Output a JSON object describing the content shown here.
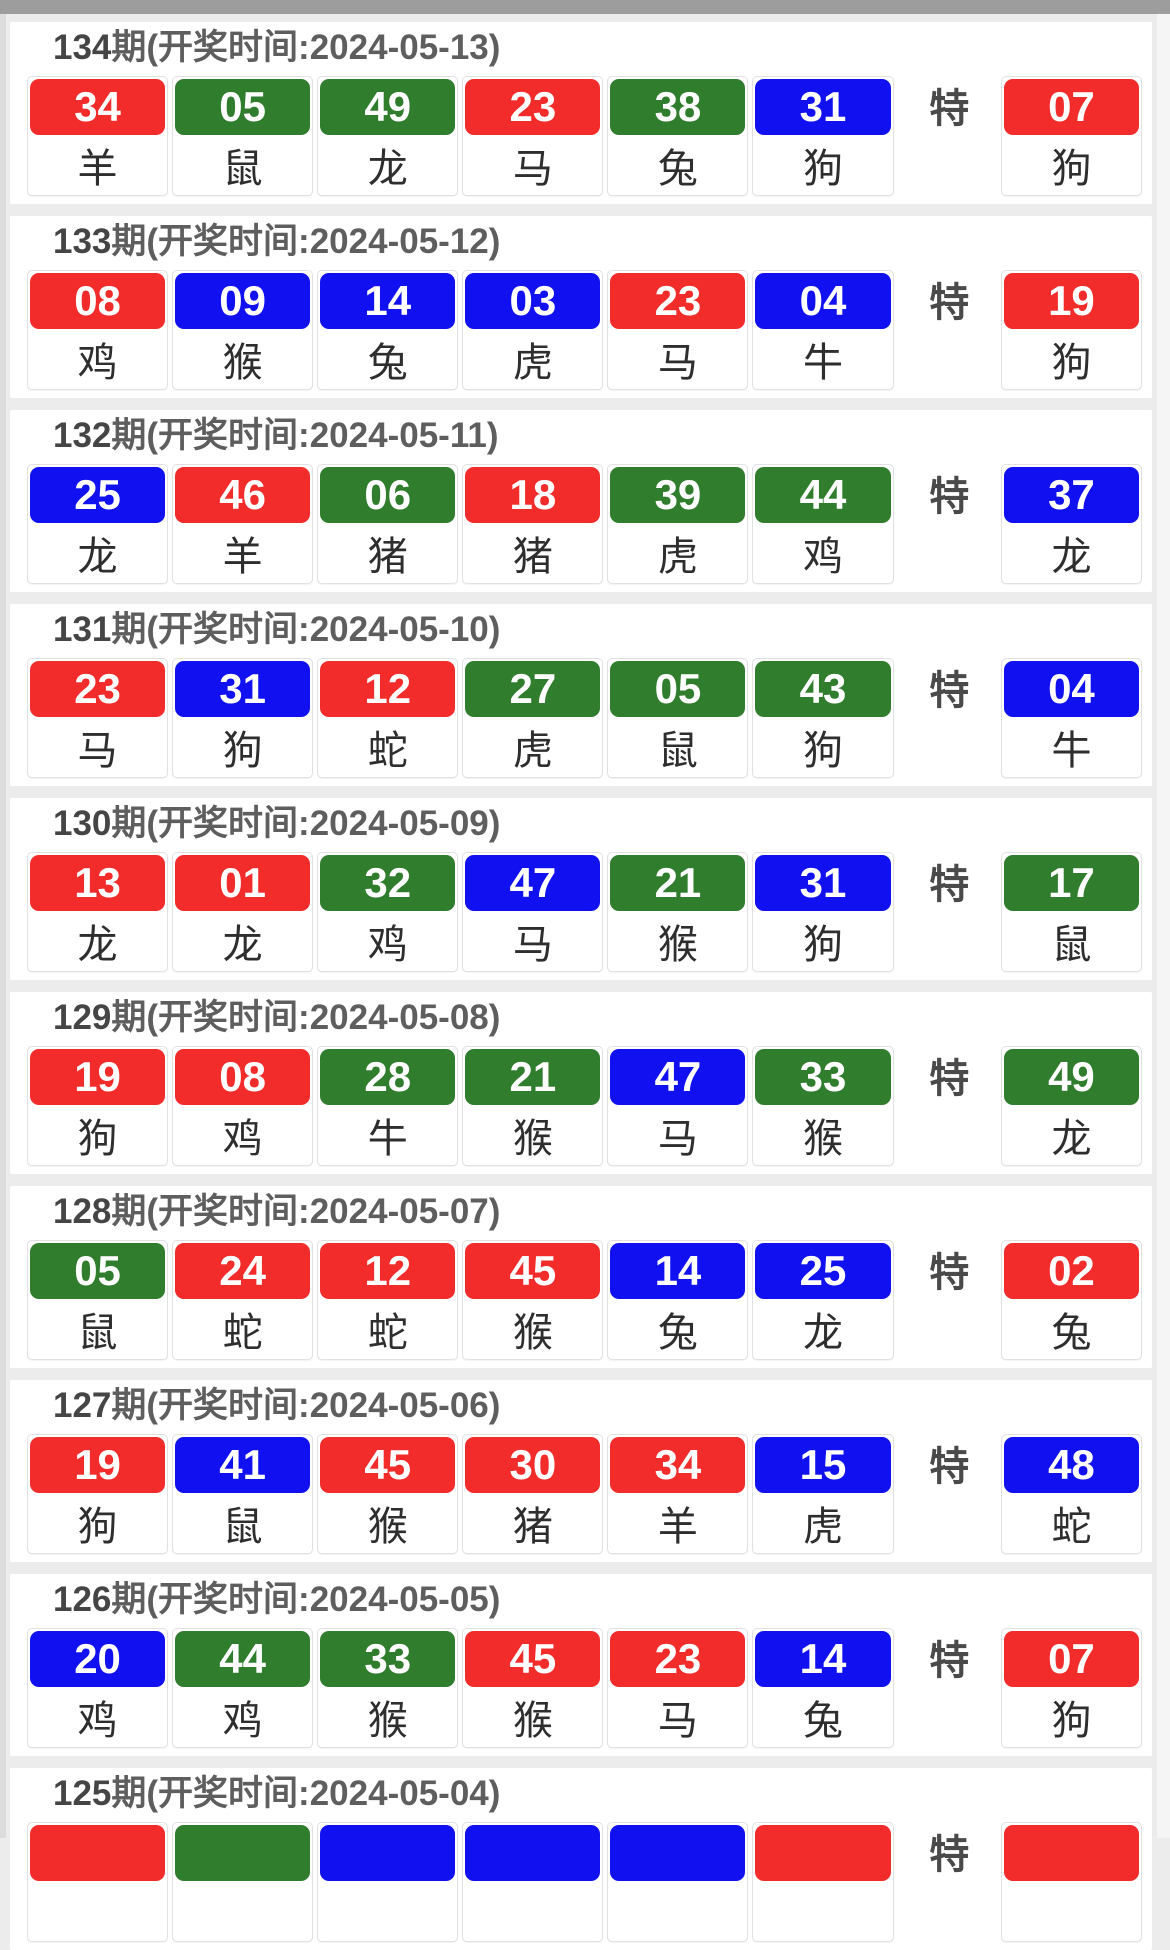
{
  "special_label": "特",
  "colors": {
    "red": "#f22b2b",
    "green": "#2f7d2d",
    "blue": "#1010f0"
  },
  "periods": [
    {
      "title_num": "134",
      "title_rest": "期(开奖时间:2024-05-13)",
      "balls": [
        {
          "num": "34",
          "color": "red",
          "zodiac": "羊"
        },
        {
          "num": "05",
          "color": "green",
          "zodiac": "鼠"
        },
        {
          "num": "49",
          "color": "green",
          "zodiac": "龙"
        },
        {
          "num": "23",
          "color": "red",
          "zodiac": "马"
        },
        {
          "num": "38",
          "color": "green",
          "zodiac": "兔"
        },
        {
          "num": "31",
          "color": "blue",
          "zodiac": "狗"
        }
      ],
      "special": {
        "num": "07",
        "color": "red",
        "zodiac": "狗"
      }
    },
    {
      "title_num": "133",
      "title_rest": "期(开奖时间:2024-05-12)",
      "balls": [
        {
          "num": "08",
          "color": "red",
          "zodiac": "鸡"
        },
        {
          "num": "09",
          "color": "blue",
          "zodiac": "猴"
        },
        {
          "num": "14",
          "color": "blue",
          "zodiac": "兔"
        },
        {
          "num": "03",
          "color": "blue",
          "zodiac": "虎"
        },
        {
          "num": "23",
          "color": "red",
          "zodiac": "马"
        },
        {
          "num": "04",
          "color": "blue",
          "zodiac": "牛"
        }
      ],
      "special": {
        "num": "19",
        "color": "red",
        "zodiac": "狗"
      }
    },
    {
      "title_num": "132",
      "title_rest": "期(开奖时间:2024-05-11)",
      "balls": [
        {
          "num": "25",
          "color": "blue",
          "zodiac": "龙"
        },
        {
          "num": "46",
          "color": "red",
          "zodiac": "羊"
        },
        {
          "num": "06",
          "color": "green",
          "zodiac": "猪"
        },
        {
          "num": "18",
          "color": "red",
          "zodiac": "猪"
        },
        {
          "num": "39",
          "color": "green",
          "zodiac": "虎"
        },
        {
          "num": "44",
          "color": "green",
          "zodiac": "鸡"
        }
      ],
      "special": {
        "num": "37",
        "color": "blue",
        "zodiac": "龙"
      }
    },
    {
      "title_num": "131",
      "title_rest": "期(开奖时间:2024-05-10)",
      "balls": [
        {
          "num": "23",
          "color": "red",
          "zodiac": "马"
        },
        {
          "num": "31",
          "color": "blue",
          "zodiac": "狗"
        },
        {
          "num": "12",
          "color": "red",
          "zodiac": "蛇"
        },
        {
          "num": "27",
          "color": "green",
          "zodiac": "虎"
        },
        {
          "num": "05",
          "color": "green",
          "zodiac": "鼠"
        },
        {
          "num": "43",
          "color": "green",
          "zodiac": "狗"
        }
      ],
      "special": {
        "num": "04",
        "color": "blue",
        "zodiac": "牛"
      }
    },
    {
      "title_num": "130",
      "title_rest": "期(开奖时间:2024-05-09)",
      "balls": [
        {
          "num": "13",
          "color": "red",
          "zodiac": "龙"
        },
        {
          "num": "01",
          "color": "red",
          "zodiac": "龙"
        },
        {
          "num": "32",
          "color": "green",
          "zodiac": "鸡"
        },
        {
          "num": "47",
          "color": "blue",
          "zodiac": "马"
        },
        {
          "num": "21",
          "color": "green",
          "zodiac": "猴"
        },
        {
          "num": "31",
          "color": "blue",
          "zodiac": "狗"
        }
      ],
      "special": {
        "num": "17",
        "color": "green",
        "zodiac": "鼠"
      }
    },
    {
      "title_num": "129",
      "title_rest": "期(开奖时间:2024-05-08)",
      "balls": [
        {
          "num": "19",
          "color": "red",
          "zodiac": "狗"
        },
        {
          "num": "08",
          "color": "red",
          "zodiac": "鸡"
        },
        {
          "num": "28",
          "color": "green",
          "zodiac": "牛"
        },
        {
          "num": "21",
          "color": "green",
          "zodiac": "猴"
        },
        {
          "num": "47",
          "color": "blue",
          "zodiac": "马"
        },
        {
          "num": "33",
          "color": "green",
          "zodiac": "猴"
        }
      ],
      "special": {
        "num": "49",
        "color": "green",
        "zodiac": "龙"
      }
    },
    {
      "title_num": "128",
      "title_rest": "期(开奖时间:2024-05-07)",
      "balls": [
        {
          "num": "05",
          "color": "green",
          "zodiac": "鼠"
        },
        {
          "num": "24",
          "color": "red",
          "zodiac": "蛇"
        },
        {
          "num": "12",
          "color": "red",
          "zodiac": "蛇"
        },
        {
          "num": "45",
          "color": "red",
          "zodiac": "猴"
        },
        {
          "num": "14",
          "color": "blue",
          "zodiac": "兔"
        },
        {
          "num": "25",
          "color": "blue",
          "zodiac": "龙"
        }
      ],
      "special": {
        "num": "02",
        "color": "red",
        "zodiac": "兔"
      }
    },
    {
      "title_num": "127",
      "title_rest": "期(开奖时间:2024-05-06)",
      "balls": [
        {
          "num": "19",
          "color": "red",
          "zodiac": "狗"
        },
        {
          "num": "41",
          "color": "blue",
          "zodiac": "鼠"
        },
        {
          "num": "45",
          "color": "red",
          "zodiac": "猴"
        },
        {
          "num": "30",
          "color": "red",
          "zodiac": "猪"
        },
        {
          "num": "34",
          "color": "red",
          "zodiac": "羊"
        },
        {
          "num": "15",
          "color": "blue",
          "zodiac": "虎"
        }
      ],
      "special": {
        "num": "48",
        "color": "blue",
        "zodiac": "蛇"
      }
    },
    {
      "title_num": "126",
      "title_rest": "期(开奖时间:2024-05-05)",
      "balls": [
        {
          "num": "20",
          "color": "blue",
          "zodiac": "鸡"
        },
        {
          "num": "44",
          "color": "green",
          "zodiac": "鸡"
        },
        {
          "num": "33",
          "color": "green",
          "zodiac": "猴"
        },
        {
          "num": "45",
          "color": "red",
          "zodiac": "猴"
        },
        {
          "num": "23",
          "color": "red",
          "zodiac": "马"
        },
        {
          "num": "14",
          "color": "blue",
          "zodiac": "兔"
        }
      ],
      "special": {
        "num": "07",
        "color": "red",
        "zodiac": "狗"
      }
    },
    {
      "title_num": "125",
      "title_rest": "期(开奖时间:2024-05-04)",
      "balls": [
        {
          "num": "",
          "color": "red",
          "zodiac": ""
        },
        {
          "num": "",
          "color": "green",
          "zodiac": ""
        },
        {
          "num": "",
          "color": "blue",
          "zodiac": ""
        },
        {
          "num": "",
          "color": "blue",
          "zodiac": ""
        },
        {
          "num": "",
          "color": "blue",
          "zodiac": ""
        },
        {
          "num": "",
          "color": "red",
          "zodiac": ""
        }
      ],
      "special": {
        "num": "",
        "color": "red",
        "zodiac": ""
      }
    }
  ]
}
